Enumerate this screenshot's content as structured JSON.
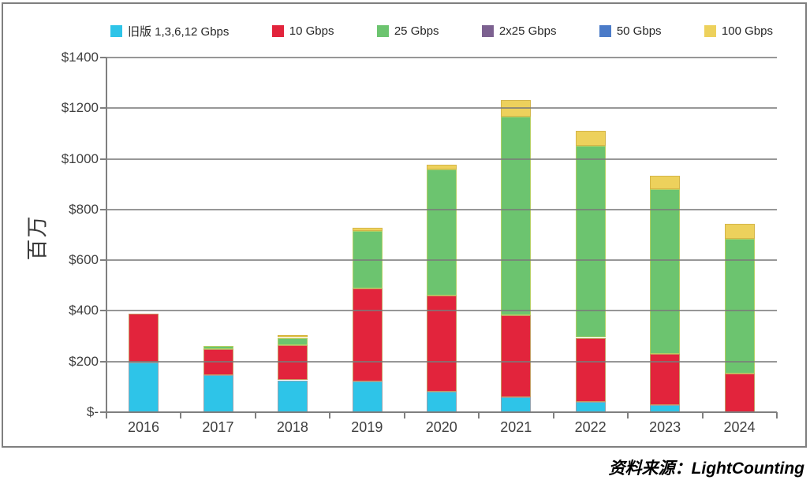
{
  "chart_data": {
    "type": "bar",
    "stacked": true,
    "title": "",
    "xlabel": "",
    "ylabel": "百万",
    "ylim": [
      0,
      1400
    ],
    "y_tick_labels": [
      "$1400",
      "$1200",
      "$1000",
      "$800",
      "$600",
      "$400",
      "$200",
      "$-"
    ],
    "grid": true,
    "legend_position": "top",
    "categories": [
      "2016",
      "2017",
      "2018",
      "2019",
      "2020",
      "2021",
      "2022",
      "2023",
      "2024"
    ],
    "series": [
      {
        "name": "旧版 1,3,6,12 Gbps",
        "color": "#2ec4e8",
        "border": "#8fa3b0",
        "values": [
          195,
          145,
          126,
          120,
          82,
          59,
          41,
          27,
          0
        ]
      },
      {
        "name": "10 Gbps",
        "color": "#e2243c",
        "border": "#c59a62",
        "values": [
          193,
          104,
          137,
          368,
          378,
          325,
          253,
          203,
          152
        ]
      },
      {
        "name": "25 Gbps",
        "color": "#6cc46f",
        "border": "#b5d063",
        "values": [
          0,
          13,
          31,
          228,
          499,
          782,
          759,
          649,
          531
        ]
      },
      {
        "name": "2x25 Gbps",
        "color": "#7c6190",
        "border": "#6d5480",
        "values": [
          0,
          0,
          0,
          0,
          0,
          0,
          0,
          0,
          0
        ]
      },
      {
        "name": "50 Gbps",
        "color": "#4b7bc8",
        "border": "#3f6cb4",
        "values": [
          0,
          0,
          0,
          0,
          0,
          0,
          0,
          0,
          0
        ]
      },
      {
        "name": "100 Gbps",
        "color": "#edd15c",
        "border": "#d4b548",
        "values": [
          0,
          0,
          10,
          12,
          19,
          66,
          59,
          53,
          61
        ]
      }
    ]
  },
  "source_note": "资料来源：LightCounting"
}
